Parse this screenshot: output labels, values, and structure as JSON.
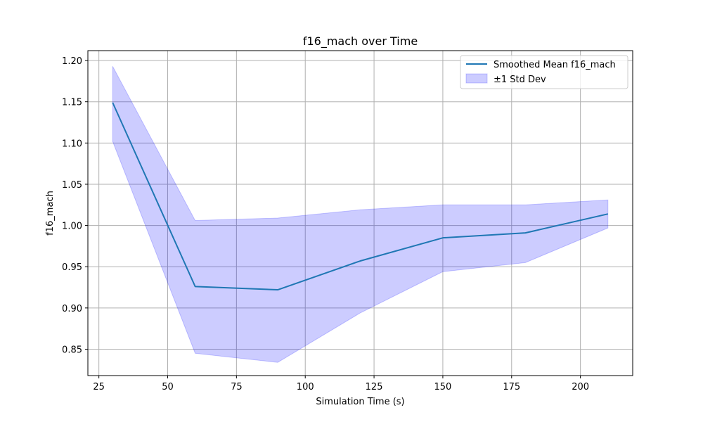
{
  "chart_data": {
    "type": "line",
    "title": "f16_mach over Time",
    "xlabel": "Simulation Time (s)",
    "ylabel": "f16_mach",
    "xlim": [
      21,
      219
    ],
    "ylim": [
      0.818,
      1.212
    ],
    "xticks": [
      25,
      50,
      75,
      100,
      125,
      150,
      175,
      200
    ],
    "yticks": [
      0.85,
      0.9,
      0.95,
      1.0,
      1.05,
      1.1,
      1.15,
      1.2
    ],
    "xtick_labels": [
      "25",
      "50",
      "75",
      "100",
      "125",
      "150",
      "175",
      "200"
    ],
    "ytick_labels": [
      "0.85",
      "0.90",
      "0.95",
      "1.00",
      "1.05",
      "1.10",
      "1.15",
      "1.20"
    ],
    "grid": true,
    "legend_position": "upper right",
    "x": [
      30,
      60,
      90,
      120,
      150,
      180,
      210
    ],
    "series": [
      {
        "name": "Smoothed Mean f16_mach",
        "kind": "line",
        "color": "#1f77b4",
        "values": [
          1.149,
          0.926,
          0.922,
          0.957,
          0.985,
          0.991,
          1.014
        ]
      },
      {
        "name": "±1 Std Dev",
        "kind": "band",
        "color": "#0000ff",
        "upper": [
          1.193,
          1.006,
          1.009,
          1.019,
          1.025,
          1.025,
          1.031
        ],
        "lower": [
          1.102,
          0.845,
          0.834,
          0.894,
          0.944,
          0.955,
          0.997
        ]
      }
    ]
  }
}
